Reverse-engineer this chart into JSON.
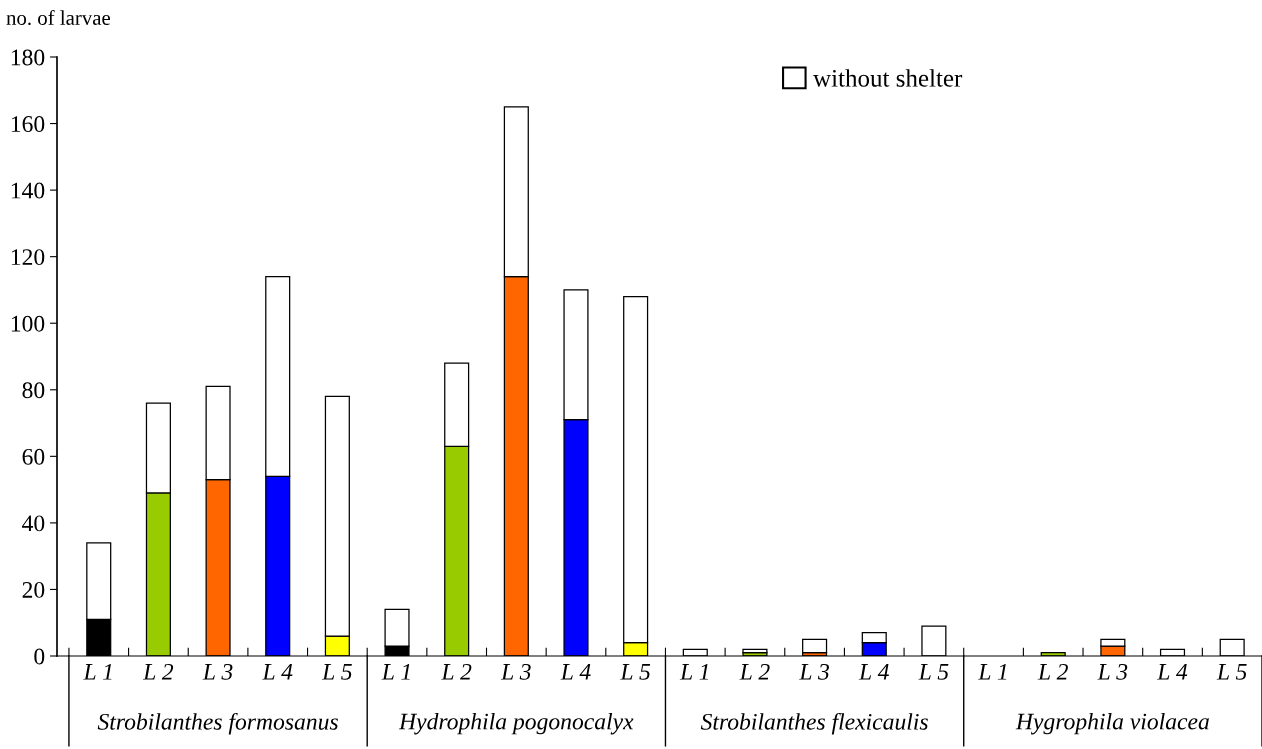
{
  "chart_data": {
    "type": "bar",
    "stacked": true,
    "ylabel": "no. of larvae",
    "categories": [
      "L 1",
      "L 2",
      "L 3",
      "L 4",
      "L 5",
      "L 1",
      "L 2",
      "L 3",
      "L 4",
      "L 5",
      "L 1",
      "L 2",
      "L 3",
      "L 4",
      "L 5",
      "L 1",
      "L 2",
      "L 3",
      "L 4",
      "L 5"
    ],
    "series": [
      {
        "colors": [
          "#000000",
          "#99cc00",
          "#ff6600",
          "#0000ff",
          "#ffff00",
          "#000000",
          "#99cc00",
          "#ff6600",
          "#0000ff",
          "#ffff00",
          "#000000",
          "#99cc00",
          "#ff6600",
          "#0000ff",
          "#ffff00",
          "#000000",
          "#99cc00",
          "#ff6600",
          "#0000ff",
          "#ffff00"
        ],
        "values": [
          11,
          49,
          53,
          54,
          6,
          3,
          63,
          114,
          71,
          4,
          0,
          1,
          1,
          4,
          0,
          0,
          1,
          3,
          0,
          0
        ]
      },
      {
        "name": "without shelter",
        "color": "#ffffff",
        "values": [
          23,
          27,
          28,
          60,
          72,
          11,
          25,
          51,
          39,
          104,
          2,
          1,
          4,
          3,
          9,
          0,
          0,
          2,
          2,
          5
        ]
      }
    ],
    "annotations": [
      "Strobilanthes formosanus",
      "Hydrophila pogonocalyx",
      "Strobilanthes flexicaulis",
      "Hygrophila violacea"
    ],
    "ylim": [
      0,
      180
    ],
    "yticks": [
      0,
      20,
      40,
      60,
      80,
      100,
      120,
      140,
      160,
      180
    ],
    "grid": false,
    "legend": "top right"
  }
}
